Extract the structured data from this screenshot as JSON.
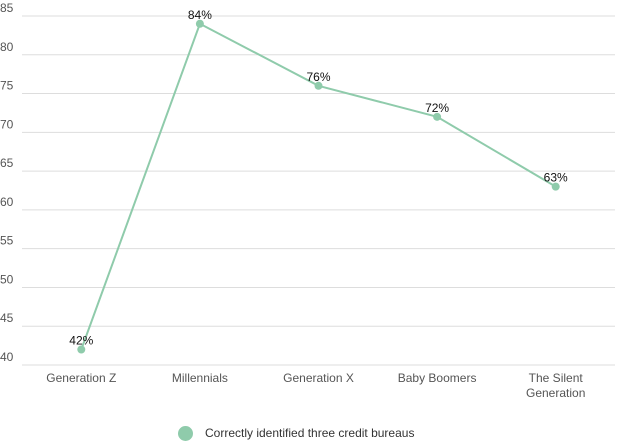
{
  "chart_data": {
    "type": "line",
    "categories": [
      "Generation Z",
      "Millennials",
      "Generation X",
      "Baby Boomers",
      "The Silent Generation"
    ],
    "category_lines": [
      [
        "Generation Z"
      ],
      [
        "Millennials"
      ],
      [
        "Generation X"
      ],
      [
        "Baby Boomers"
      ],
      [
        "The Silent",
        "Generation"
      ]
    ],
    "series": [
      {
        "name": "Correctly identified three credit bureaus",
        "values": [
          42,
          84,
          76,
          72,
          63
        ],
        "labels": [
          "42%",
          "84%",
          "76%",
          "72%",
          "63%"
        ]
      }
    ],
    "yticks": [
      "40",
      "45",
      "50",
      "55",
      "60",
      "65",
      "70",
      "75",
      "80",
      "85"
    ],
    "ylim": [
      40,
      85
    ],
    "grid": true,
    "legend_position": "bottom",
    "colors": {
      "series": "#8fcbab",
      "grid": "#dddddd",
      "tick": "#555555"
    }
  }
}
